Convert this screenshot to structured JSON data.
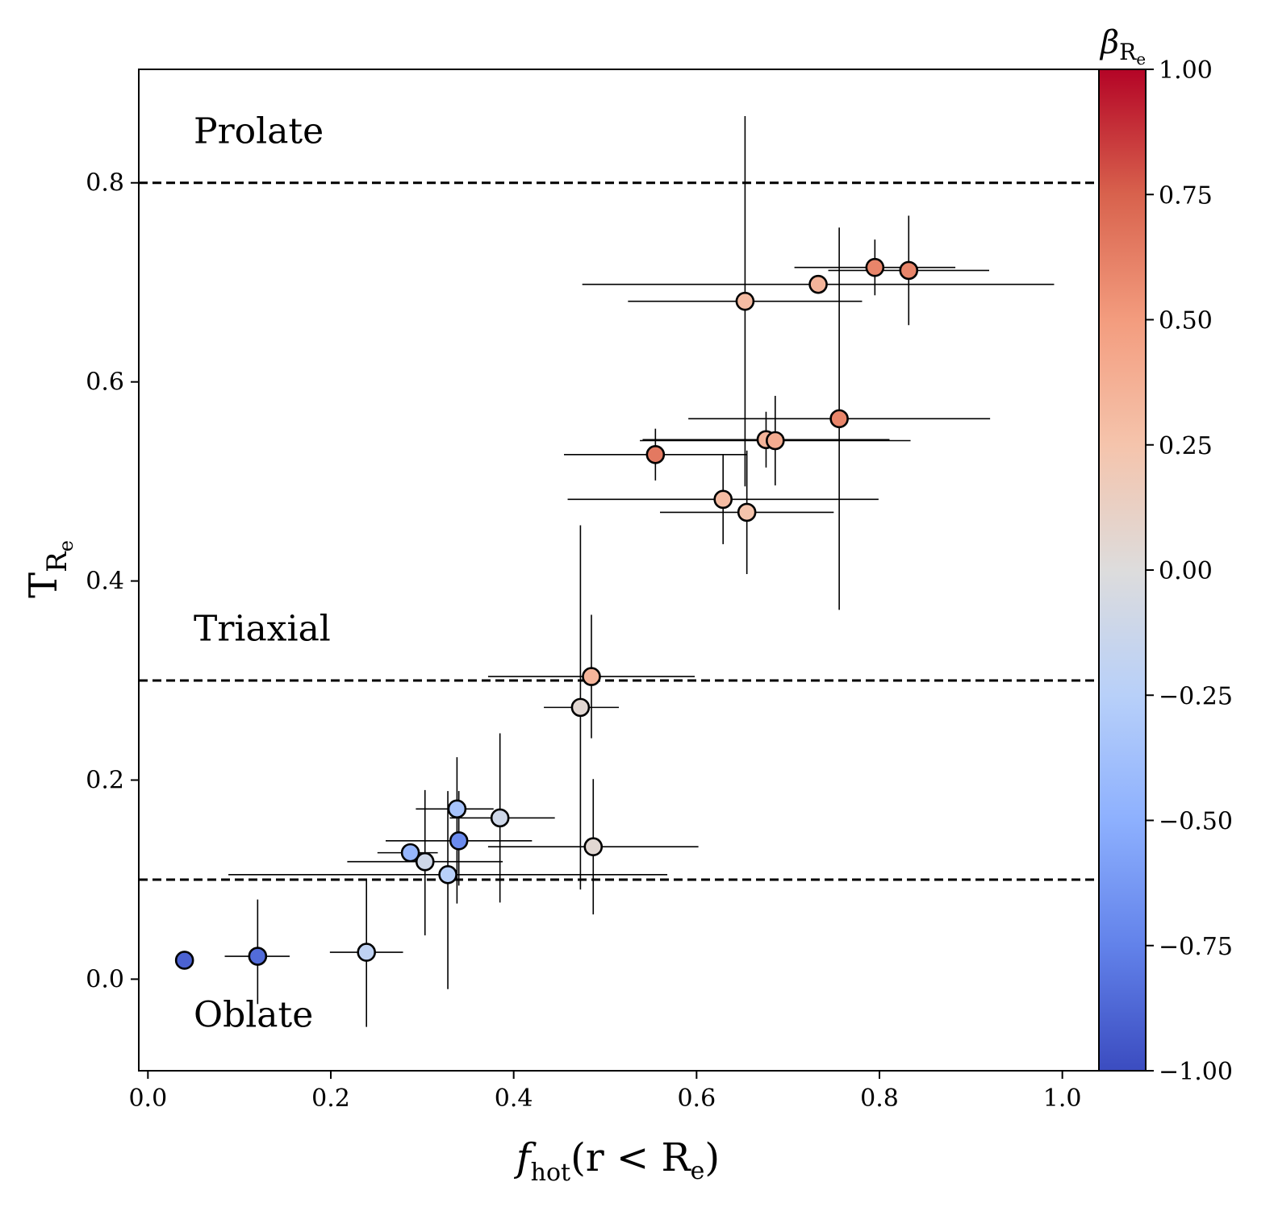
{
  "chart_data": {
    "type": "scatter",
    "xlabel": {
      "main": "f",
      "sub": "hot",
      "rest": "(r < R",
      "sub2": "e",
      "close": ")"
    },
    "ylabel": {
      "main": "T",
      "sub": "R",
      "subsub": "e"
    },
    "xlim": [
      -0.01,
      1.04
    ],
    "ylim": [
      -0.092,
      0.914
    ],
    "x_ticks": [
      {
        "value": 0.0,
        "label": "0.0"
      },
      {
        "value": 0.2,
        "label": "0.2"
      },
      {
        "value": 0.4,
        "label": "0.4"
      },
      {
        "value": 0.6,
        "label": "0.6"
      },
      {
        "value": 0.8,
        "label": "0.8"
      },
      {
        "value": 1.0,
        "label": "1.0"
      }
    ],
    "y_ticks": [
      {
        "value": 0.0,
        "label": "0.0"
      },
      {
        "value": 0.2,
        "label": "0.2"
      },
      {
        "value": 0.4,
        "label": "0.4"
      },
      {
        "value": 0.6,
        "label": "0.6"
      },
      {
        "value": 0.8,
        "label": "0.8"
      }
    ],
    "reference_lines": [
      {
        "y": 0.8,
        "label": "Prolate",
        "label_x": 0.05,
        "label_y": 0.84
      },
      {
        "y": 0.3,
        "label": "Triaxial",
        "label_x": 0.05,
        "label_y": 0.34
      },
      {
        "y": 0.1,
        "label": "",
        "label_x": 0.05,
        "label_y": 0.0
      }
    ],
    "extra_labels": [
      {
        "text": "Oblate",
        "x": 0.05,
        "y": -0.048
      }
    ],
    "colorbar": {
      "title": {
        "main": "β",
        "sub": "R",
        "subsub": "e"
      },
      "vmin": -1.0,
      "vmax": 1.0,
      "colormap": "coolwarm",
      "ticks": [
        {
          "value": 1.0,
          "label": "1.00"
        },
        {
          "value": 0.75,
          "label": "0.75"
        },
        {
          "value": 0.5,
          "label": "0.50"
        },
        {
          "value": 0.25,
          "label": "0.25"
        },
        {
          "value": 0.0,
          "label": "0.00"
        },
        {
          "value": -0.25,
          "label": "−0.25"
        },
        {
          "value": -0.5,
          "label": "−0.50"
        },
        {
          "value": -0.75,
          "label": "−0.75"
        },
        {
          "value": -1.0,
          "label": "−1.00"
        }
      ]
    },
    "points": [
      {
        "x": 0.04,
        "y": 0.019,
        "xerr": [
          0,
          0
        ],
        "yerr": [
          0,
          0
        ],
        "beta": -0.9
      },
      {
        "x": 0.12,
        "y": 0.023,
        "xerr": [
          0.036,
          0.035
        ],
        "yerr": [
          0.048,
          0.057
        ],
        "beta": -0.85
      },
      {
        "x": 0.239,
        "y": 0.027,
        "xerr": [
          0.04,
          0.04
        ],
        "yerr": [
          0.075,
          0.072
        ],
        "beta": -0.2
      },
      {
        "x": 0.287,
        "y": 0.127,
        "xerr": [
          0.036,
          0.03
        ],
        "yerr": [
          0,
          0
        ],
        "beta": -0.45
      },
      {
        "x": 0.303,
        "y": 0.118,
        "xerr": [
          0.085,
          0.085
        ],
        "yerr": [
          0.074,
          0.072
        ],
        "beta": -0.1
      },
      {
        "x": 0.328,
        "y": 0.105,
        "xerr": [
          0.24,
          0.24
        ],
        "yerr": [
          0.115,
          0.084
        ],
        "beta": -0.25
      },
      {
        "x": 0.338,
        "y": 0.171,
        "xerr": [
          0.045,
          0.04
        ],
        "yerr": [
          0.095,
          0.052
        ],
        "beta": -0.35
      },
      {
        "x": 0.34,
        "y": 0.139,
        "xerr": [
          0.08,
          0.08
        ],
        "yerr": [
          0.045,
          0.05
        ],
        "beta": -0.7
      },
      {
        "x": 0.385,
        "y": 0.162,
        "xerr": [
          0.055,
          0.06
        ],
        "yerr": [
          0.085,
          0.085
        ],
        "beta": -0.1
      },
      {
        "x": 0.473,
        "y": 0.273,
        "xerr": [
          0.04,
          0.042
        ],
        "yerr": [
          0.183,
          0.183
        ],
        "beta": 0.05
      },
      {
        "x": 0.485,
        "y": 0.304,
        "xerr": [
          0.113,
          0.113
        ],
        "yerr": [
          0.062,
          0.062
        ],
        "beta": 0.35
      },
      {
        "x": 0.487,
        "y": 0.133,
        "xerr": [
          0.115,
          0.115
        ],
        "yerr": [
          0.068,
          0.068
        ],
        "beta": 0.05
      },
      {
        "x": 0.555,
        "y": 0.527,
        "xerr": [
          0.1,
          0.1
        ],
        "yerr": [
          0.026,
          0.026
        ],
        "beta": 0.65
      },
      {
        "x": 0.629,
        "y": 0.482,
        "xerr": [
          0.17,
          0.17
        ],
        "yerr": [
          0.045,
          0.045
        ],
        "beta": 0.3
      },
      {
        "x": 0.653,
        "y": 0.681,
        "xerr": [
          0.128,
          0.128
        ],
        "yerr": [
          0.186,
          0.186
        ],
        "beta": 0.3
      },
      {
        "x": 0.655,
        "y": 0.469,
        "xerr": [
          0.095,
          0.095
        ],
        "yerr": [
          0.062,
          0.062
        ],
        "beta": 0.25
      },
      {
        "x": 0.676,
        "y": 0.542,
        "xerr": [
          0.135,
          0.135
        ],
        "yerr": [
          0.028,
          0.028
        ],
        "beta": 0.35
      },
      {
        "x": 0.686,
        "y": 0.541,
        "xerr": [
          0.148,
          0.148
        ],
        "yerr": [
          0.045,
          0.045
        ],
        "beta": 0.4
      },
      {
        "x": 0.733,
        "y": 0.698,
        "xerr": [
          0.258,
          0.258
        ],
        "yerr": [
          0,
          0
        ],
        "beta": 0.35
      },
      {
        "x": 0.756,
        "y": 0.563,
        "xerr": [
          0.165,
          0.165
        ],
        "yerr": [
          0.192,
          0.192
        ],
        "beta": 0.6
      },
      {
        "x": 0.795,
        "y": 0.715,
        "xerr": [
          0.088,
          0.088
        ],
        "yerr": [
          0.028,
          0.028
        ],
        "beta": 0.6
      },
      {
        "x": 0.832,
        "y": 0.712,
        "xerr": [
          0.088,
          0.088
        ],
        "yerr": [
          0.055,
          0.055
        ],
        "beta": 0.6
      }
    ]
  }
}
